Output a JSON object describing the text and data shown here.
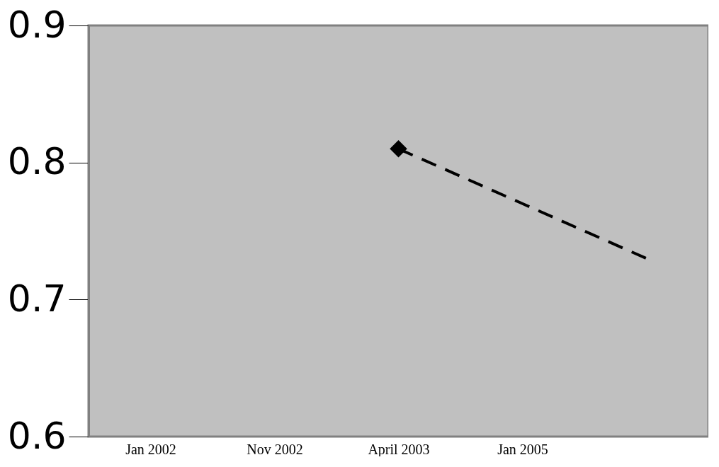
{
  "chart_data": {
    "type": "line",
    "categories": [
      "Jan 2002",
      "Nov 2002",
      "April 2003",
      "Jan 2005",
      null
    ],
    "series": [
      {
        "color": "#000000",
        "line_style": "dashed",
        "marker": "none",
        "values": [
          null,
          null,
          0.81,
          0.77,
          0.73
        ]
      },
      {
        "type": "scatter",
        "color": "#000000",
        "marker": "diamond",
        "x": [
          "April 2003"
        ],
        "values": [
          0.81
        ]
      }
    ],
    "ylim": [
      0.6,
      0.9
    ],
    "yticks": [
      0.6,
      0.7,
      0.8,
      0.9
    ],
    "grid": false
  }
}
